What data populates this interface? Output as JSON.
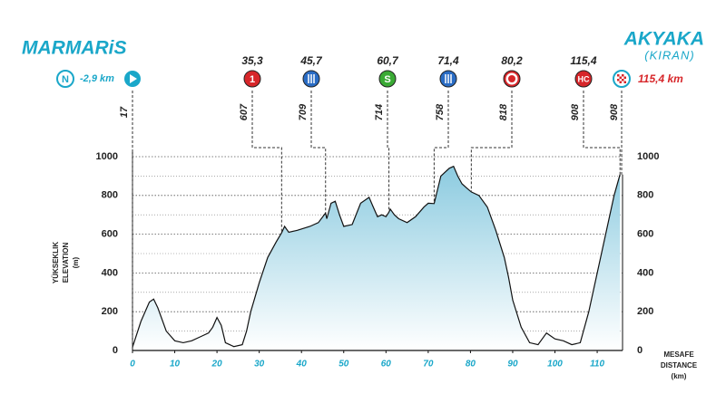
{
  "chart_data": {
    "type": "line",
    "start": {
      "name": "MARMARiS",
      "icon_text": "N",
      "distance_label": "-2,9 km",
      "elevation": 17
    },
    "finish": {
      "name": "AKYAKA",
      "subname": "(KIRAN)",
      "distance_label": "115,4 km",
      "elevation": 908
    },
    "y_axis_label": [
      "YÜKSEKLIK",
      "ELEVATION",
      "(m)"
    ],
    "x_axis_label": [
      "MESAFE",
      "DISTANCE",
      "(km)"
    ],
    "waypoints": [
      {
        "km": {
          "value": 35.3,
          "label": "35,3"
        },
        "elevation": 607,
        "symbol": "text",
        "icon_text": "1",
        "color": "#d7262a"
      },
      {
        "km": {
          "value": 45.7,
          "label": "45,7"
        },
        "elevation": 709,
        "symbol": "fork",
        "color": "#2a6cc4"
      },
      {
        "km": {
          "value": 60.7,
          "label": "60,7"
        },
        "elevation": 714,
        "symbol": "text",
        "icon_text": "S",
        "color": "#3aaa35"
      },
      {
        "km": {
          "value": 71.4,
          "label": "71,4"
        },
        "elevation": 758,
        "symbol": "fork",
        "color": "#2a6cc4"
      },
      {
        "km": {
          "value": 80.2,
          "label": "80,2"
        },
        "elevation": 818,
        "symbol": "flower",
        "color": "#d7262a"
      },
      {
        "km": {
          "value": 115.4,
          "label": "115,4"
        },
        "elevation": 908,
        "symbol": "text",
        "icon_text": "HC",
        "color": "#d7262a"
      }
    ],
    "x": [
      0,
      2,
      4,
      5,
      6,
      8,
      10,
      12,
      14,
      16,
      18,
      19,
      20,
      21,
      22,
      24,
      26,
      27,
      28,
      30,
      32,
      34,
      35.3,
      36,
      37,
      39,
      42,
      44,
      45.7,
      46,
      47,
      48,
      49,
      50,
      52,
      54,
      56,
      57,
      58,
      59,
      60,
      60.7,
      61,
      62,
      63,
      65,
      67,
      69,
      70,
      71.4,
      73,
      75,
      76,
      77,
      78,
      79,
      80.2,
      82,
      84,
      86,
      88,
      89,
      90,
      92,
      94,
      96,
      98,
      100,
      102,
      104,
      106,
      108,
      110,
      112,
      114,
      115.4
    ],
    "series": [
      {
        "name": "elevation",
        "color": "#111111",
        "fill": "#8ccbe0",
        "values": [
          17,
          150,
          250,
          265,
          220,
          100,
          50,
          40,
          50,
          70,
          90,
          120,
          170,
          130,
          40,
          20,
          30,
          100,
          200,
          350,
          480,
          560,
          607,
          640,
          610,
          620,
          640,
          660,
          709,
          680,
          760,
          770,
          700,
          640,
          650,
          760,
          790,
          740,
          690,
          700,
          690,
          714,
          730,
          700,
          680,
          660,
          690,
          740,
          760,
          758,
          900,
          940,
          950,
          900,
          860,
          840,
          818,
          800,
          740,
          620,
          480,
          380,
          260,
          120,
          40,
          30,
          90,
          60,
          50,
          30,
          40,
          200,
          400,
          600,
          800,
          908
        ]
      }
    ],
    "xlim": [
      0,
      116
    ],
    "xticks": [
      0,
      10,
      20,
      30,
      40,
      50,
      60,
      70,
      80,
      90,
      100,
      110
    ],
    "ylim": [
      0,
      1000
    ],
    "yticks": [
      0,
      200,
      400,
      600,
      800,
      1000
    ],
    "minor_yticks": [
      100,
      300,
      500,
      700,
      900
    ],
    "grid": true,
    "accent_color": "#1aa7c9",
    "finish_color": "#d7262a"
  }
}
